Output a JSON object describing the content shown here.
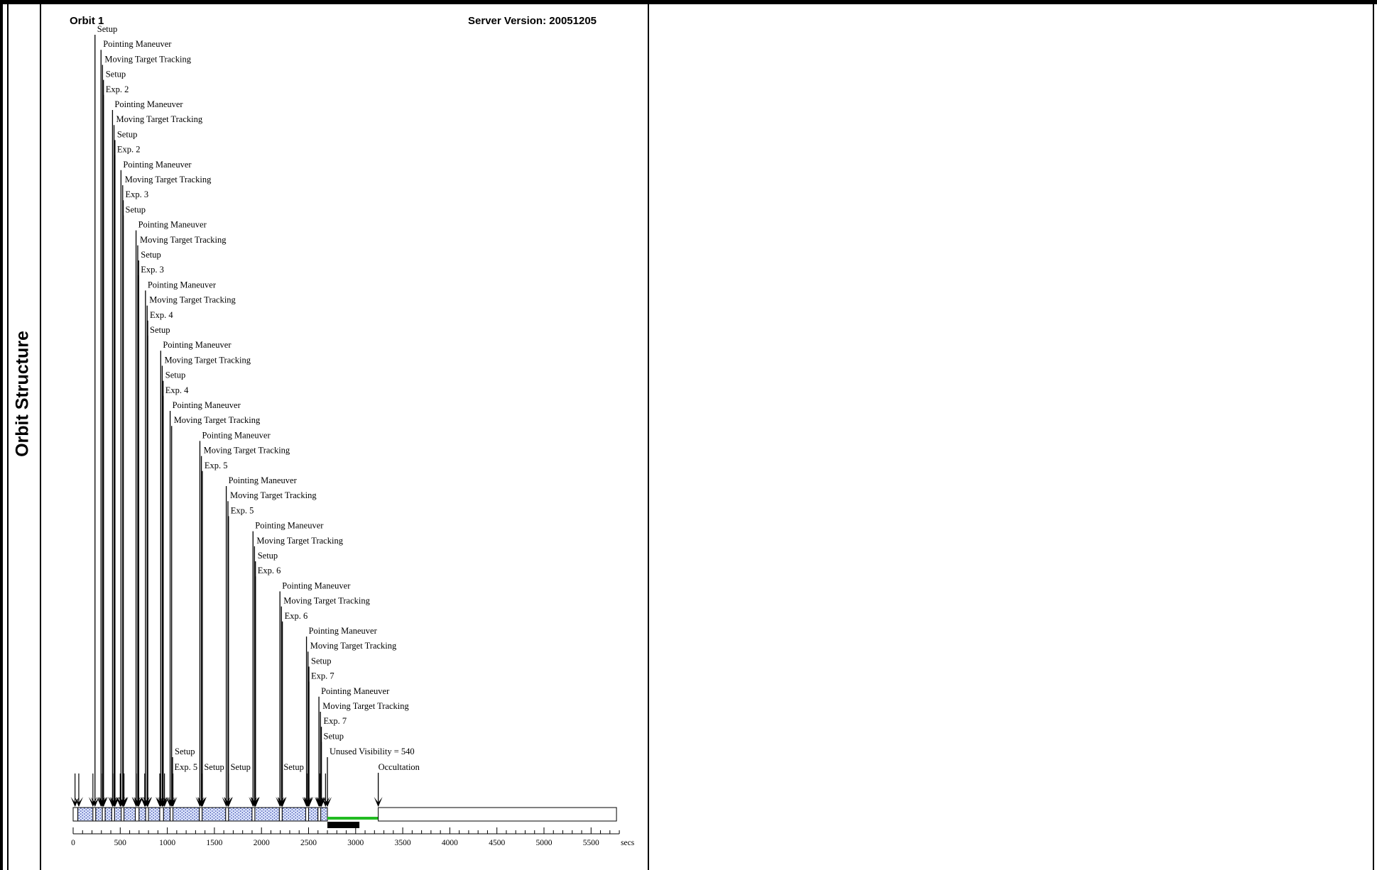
{
  "panel": {
    "title": "Orbit Structure"
  },
  "header": {
    "orbit_label": "Orbit 1",
    "server_version": "Server Version: 20051205"
  },
  "axis": {
    "unit": "secs",
    "min": 0,
    "max": 5800,
    "ticks": [
      0,
      500,
      1000,
      1500,
      2000,
      2500,
      3000,
      3500,
      4000,
      4500,
      5000,
      5500
    ],
    "minor_step": 100
  },
  "colors": {
    "pattern": "#2030a0",
    "pattern_bg": "#dbe4fb",
    "visibility": "#22bb22",
    "bar": "#000000"
  },
  "activities": [
    {
      "label": "Setup",
      "t": 232
    },
    {
      "label": "Pointing Maneuver",
      "t": 296
    },
    {
      "label": "Moving Target Tracking",
      "t": 312
    },
    {
      "label": "Setup",
      "t": 322
    },
    {
      "label": "Exp. 2",
      "t": 322
    },
    {
      "label": "Pointing Maneuver",
      "t": 418
    },
    {
      "label": "Moving Target Tracking",
      "t": 434
    },
    {
      "label": "Setup",
      "t": 444
    },
    {
      "label": "Exp. 2",
      "t": 444
    },
    {
      "label": "Pointing Maneuver",
      "t": 508
    },
    {
      "label": "Moving Target Tracking",
      "t": 526
    },
    {
      "label": "Exp. 3",
      "t": 532
    },
    {
      "label": "Setup",
      "t": 532
    },
    {
      "label": "Pointing Maneuver",
      "t": 668
    },
    {
      "label": "Moving Target Tracking",
      "t": 686
    },
    {
      "label": "Setup",
      "t": 696
    },
    {
      "label": "Exp. 3",
      "t": 696
    },
    {
      "label": "Pointing Maneuver",
      "t": 768
    },
    {
      "label": "Moving Target Tracking",
      "t": 786
    },
    {
      "label": "Exp. 4",
      "t": 792
    },
    {
      "label": "Setup",
      "t": 792
    },
    {
      "label": "Pointing Maneuver",
      "t": 930
    },
    {
      "label": "Moving Target Tracking",
      "t": 946
    },
    {
      "label": "Setup",
      "t": 956
    },
    {
      "label": "Exp. 4",
      "t": 956
    },
    {
      "label": "Pointing Maneuver",
      "t": 1030
    },
    {
      "label": "Moving Target Tracking",
      "t": 1046
    },
    {
      "label": "Pointing Maneuver",
      "t": 1346
    },
    {
      "label": "Moving Target Tracking",
      "t": 1362
    },
    {
      "label": "Exp. 5",
      "t": 1372
    },
    {
      "label": "Pointing Maneuver",
      "t": 1626
    },
    {
      "label": "Moving Target Tracking",
      "t": 1644
    },
    {
      "label": "Exp. 5",
      "t": 1650
    },
    {
      "label": "Pointing Maneuver",
      "t": 1910
    },
    {
      "label": "Moving Target Tracking",
      "t": 1926
    },
    {
      "label": "Setup",
      "t": 1936
    },
    {
      "label": "Exp. 6",
      "t": 1936
    },
    {
      "label": "Pointing Maneuver",
      "t": 2196
    },
    {
      "label": "Moving Target Tracking",
      "t": 2212
    },
    {
      "label": "Exp. 6",
      "t": 2222
    },
    {
      "label": "Pointing Maneuver",
      "t": 2478
    },
    {
      "label": "Moving Target Tracking",
      "t": 2494
    },
    {
      "label": "Setup",
      "t": 2504
    },
    {
      "label": "Exp. 7",
      "t": 2504
    },
    {
      "label": "Pointing Maneuver",
      "t": 2610
    },
    {
      "label": "Moving Target Tracking",
      "t": 2626
    },
    {
      "label": "Exp. 7",
      "t": 2636
    },
    {
      "label": "Setup",
      "t": 2636
    },
    {
      "label": "Setup",
      "t": 1056
    },
    {
      "label": "Unused Visibility = 540",
      "t": 2700
    }
  ],
  "bottom_labels": [
    {
      "label": "Exp. 5",
      "t": 1060
    },
    {
      "label": "Setup",
      "t": 1375
    },
    {
      "label": "Setup",
      "t": 1655
    },
    {
      "label": "Setup",
      "t": 2220
    }
  ],
  "occultation": {
    "label": "Occultation",
    "t": 3240
  },
  "small_arrow_times": [
    20,
    60,
    210,
    310,
    420,
    500,
    540,
    670,
    760,
    920,
    970,
    1060,
    1370,
    1650,
    1930,
    2220,
    2490,
    2620,
    2680
  ],
  "segments": [
    {
      "start": 0,
      "end": 50,
      "pattern": false
    },
    {
      "start": 50,
      "end": 210,
      "pattern": true
    },
    {
      "start": 210,
      "end": 240,
      "pattern": false
    },
    {
      "start": 240,
      "end": 310,
      "pattern": true
    },
    {
      "start": 310,
      "end": 340,
      "pattern": false
    },
    {
      "start": 340,
      "end": 410,
      "pattern": true
    },
    {
      "start": 410,
      "end": 440,
      "pattern": false
    },
    {
      "start": 440,
      "end": 510,
      "pattern": true
    },
    {
      "start": 510,
      "end": 540,
      "pattern": false
    },
    {
      "start": 540,
      "end": 660,
      "pattern": true
    },
    {
      "start": 660,
      "end": 700,
      "pattern": false
    },
    {
      "start": 700,
      "end": 770,
      "pattern": true
    },
    {
      "start": 770,
      "end": 800,
      "pattern": false
    },
    {
      "start": 800,
      "end": 920,
      "pattern": true
    },
    {
      "start": 920,
      "end": 960,
      "pattern": false
    },
    {
      "start": 960,
      "end": 1030,
      "pattern": true
    },
    {
      "start": 1030,
      "end": 1060,
      "pattern": false
    },
    {
      "start": 1060,
      "end": 1340,
      "pattern": true
    },
    {
      "start": 1340,
      "end": 1370,
      "pattern": false
    },
    {
      "start": 1370,
      "end": 1620,
      "pattern": true
    },
    {
      "start": 1620,
      "end": 1650,
      "pattern": false
    },
    {
      "start": 1650,
      "end": 1900,
      "pattern": true
    },
    {
      "start": 1900,
      "end": 1930,
      "pattern": false
    },
    {
      "start": 1930,
      "end": 2190,
      "pattern": true
    },
    {
      "start": 2190,
      "end": 2220,
      "pattern": false
    },
    {
      "start": 2220,
      "end": 2470,
      "pattern": true
    },
    {
      "start": 2470,
      "end": 2500,
      "pattern": false
    },
    {
      "start": 2500,
      "end": 2600,
      "pattern": true
    },
    {
      "start": 2600,
      "end": 2630,
      "pattern": false
    },
    {
      "start": 2630,
      "end": 2700,
      "pattern": true
    }
  ],
  "visibility": {
    "start": 2700,
    "end": 3240
  },
  "black_bar": {
    "start": 2700,
    "end": 3040
  },
  "occultation_box": {
    "start": 3240,
    "end": 5770
  }
}
